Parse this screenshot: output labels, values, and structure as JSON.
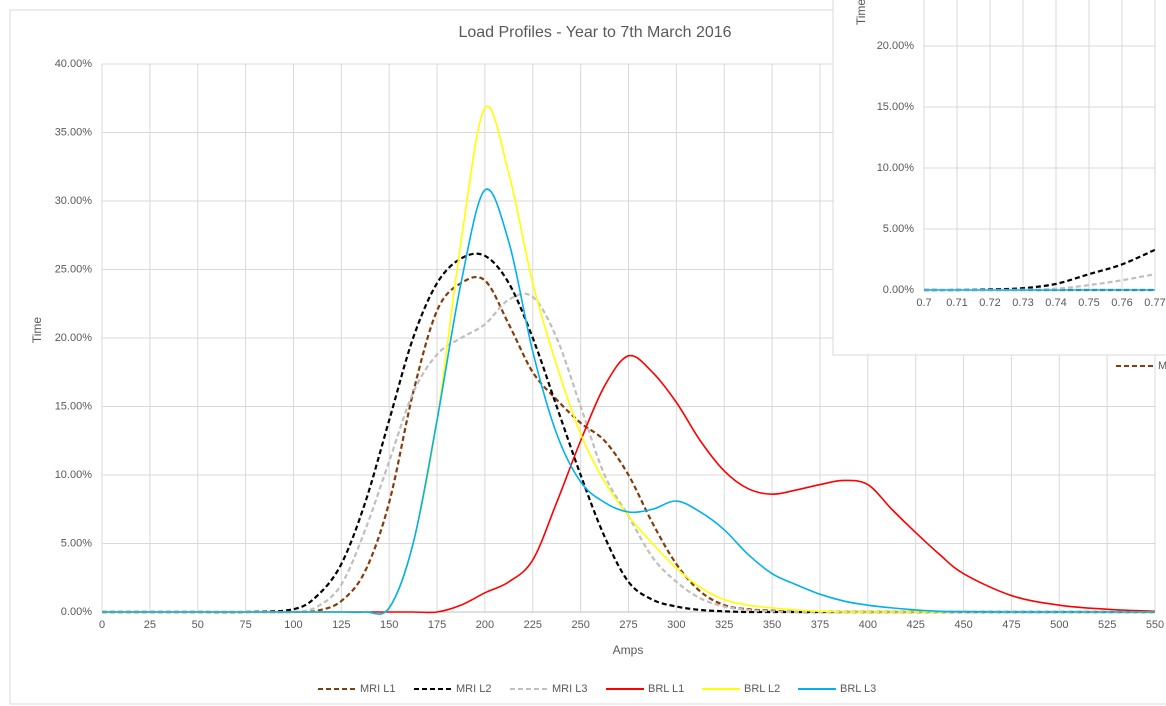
{
  "chart_data": [
    {
      "type": "line",
      "title": "Load Profiles - Year to 7th March 2016",
      "x_label": "Amps",
      "y_label": "Time",
      "grid": true,
      "legend": "bottom",
      "x": [
        0,
        25,
        50,
        75,
        100,
        112.5,
        125,
        137.5,
        150,
        162.5,
        175,
        187.5,
        200,
        212.5,
        225,
        237.5,
        250,
        262.5,
        275,
        287.5,
        300,
        312.5,
        325,
        337.5,
        350,
        362.5,
        375,
        387.5,
        400,
        412.5,
        425,
        437.5,
        450,
        475,
        500,
        525,
        550
      ],
      "xlim": [
        0,
        550
      ],
      "xticks": [
        0,
        25,
        50,
        75,
        100,
        125,
        150,
        175,
        200,
        225,
        250,
        275,
        300,
        325,
        350,
        375,
        400,
        425,
        450,
        475,
        500,
        525,
        550
      ],
      "ylim": [
        0,
        40
      ],
      "yticks": [
        {
          "value": 0,
          "label": "0.00%"
        },
        {
          "value": 5,
          "label": "5.00%"
        },
        {
          "value": 10,
          "label": "10.00%"
        },
        {
          "value": 15,
          "label": "15.00%"
        },
        {
          "value": 20,
          "label": "20.00%"
        },
        {
          "value": 25,
          "label": "25.00%"
        },
        {
          "value": 30,
          "label": "30.00%"
        },
        {
          "value": 35,
          "label": "35.00%"
        },
        {
          "value": 40,
          "label": "40.00%"
        }
      ],
      "series": [
        {
          "name": "MRI L1",
          "color": "#843c0c",
          "line_style": "dashed",
          "values": [
            0,
            0,
            0,
            0,
            0,
            0.1,
            0.8,
            3,
            8,
            16,
            22,
            24,
            24.2,
            21,
            17.5,
            15.5,
            13.8,
            12.5,
            10,
            6.5,
            3.5,
            1.5,
            0.5,
            0.2,
            0.1,
            0,
            0,
            0,
            0,
            0,
            0,
            0,
            0,
            0,
            0,
            0,
            0
          ]
        },
        {
          "name": "MRI L2",
          "color": "#000000",
          "line_style": "dashed",
          "values": [
            0,
            0,
            0,
            0,
            0.2,
            1.2,
            3.5,
            8,
            14,
            20,
            24,
            25.8,
            26,
            24,
            20,
            15,
            10,
            5.5,
            2.2,
            0.9,
            0.4,
            0.15,
            0.05,
            0,
            0,
            0,
            0,
            0,
            0,
            0,
            0,
            0,
            0,
            0,
            0,
            0,
            0
          ]
        },
        {
          "name": "MRI L3",
          "color": "#bfbfbf",
          "line_style": "dashed",
          "values": [
            0,
            0,
            0,
            0,
            0,
            0.4,
            2,
            6,
            11,
            16,
            18.8,
            20,
            21,
            22.8,
            23,
            20,
            15,
            10,
            7,
            4,
            2.2,
            1,
            0.4,
            0.15,
            0.05,
            0,
            0,
            0,
            0,
            0,
            0,
            0,
            0,
            0,
            0,
            0,
            0
          ]
        },
        {
          "name": "BRL L1",
          "color": "#ff0000",
          "line_style": "solid",
          "values": [
            0,
            0,
            0,
            0,
            0,
            0,
            0,
            0,
            0,
            0,
            0,
            0.5,
            1.4,
            2.2,
            3.8,
            8,
            12.5,
            16.5,
            18.7,
            17.5,
            15.3,
            12.5,
            10.3,
            9,
            8.6,
            8.9,
            9.3,
            9.6,
            9.3,
            7.5,
            5.8,
            4.2,
            2.8,
            1.2,
            0.5,
            0.2,
            0.05
          ]
        },
        {
          "name": "BRL L2",
          "color": "#ffff00",
          "line_style": "solid",
          "values": [
            0,
            0,
            0,
            0,
            0,
            0,
            0,
            0,
            0.3,
            5,
            14,
            27,
            36.8,
            32,
            24,
            18,
            13,
            9.5,
            7,
            5,
            3.2,
            1.8,
            0.9,
            0.5,
            0.3,
            0.15,
            0.05,
            0,
            0,
            0,
            0,
            0,
            0,
            0,
            0,
            0,
            0
          ]
        },
        {
          "name": "BRL L3",
          "color": "#00b0f0",
          "line_style": "solid",
          "values": [
            0,
            0,
            0,
            0,
            0,
            0,
            0,
            0,
            0.3,
            5,
            14,
            24,
            30.8,
            27,
            19,
            13,
            9.5,
            8,
            7.3,
            7.5,
            8.1,
            7.3,
            6,
            4.2,
            2.8,
            2,
            1.3,
            0.8,
            0.5,
            0.3,
            0.15,
            0.05,
            0.02,
            0,
            0,
            0,
            0
          ]
        }
      ]
    },
    {
      "type": "line",
      "y_label": "Time",
      "grid": true,
      "legend": "bottom",
      "x": [
        0.7,
        0.71,
        0.72,
        0.73,
        0.74,
        0.75,
        0.76,
        0.77
      ],
      "xlim": [
        0.7,
        0.77
      ],
      "xticks": [
        0.7,
        0.71,
        0.72,
        0.73,
        0.74,
        0.75,
        0.76,
        0.77
      ],
      "ylim": [
        0,
        25
      ],
      "yticks": [
        {
          "value": 0,
          "label": "0.00%"
        },
        {
          "value": 5,
          "label": "5.00%"
        },
        {
          "value": 10,
          "label": "10.00%"
        },
        {
          "value": 15,
          "label": "15.00%"
        },
        {
          "value": 20,
          "label": "20.00%"
        }
      ],
      "series": [
        {
          "name": "MRI L1",
          "color": "#843c0c",
          "line_style": "dashed",
          "values": [
            0,
            0,
            0,
            0,
            0,
            0,
            0,
            0
          ]
        },
        {
          "name": "MRI L2",
          "color": "#000000",
          "line_style": "dashed",
          "values": [
            0,
            0,
            0.05,
            0.15,
            0.5,
            1.3,
            2.1,
            3.3
          ]
        },
        {
          "name": "MRI L3",
          "color": "#bfbfbf",
          "line_style": "dashed",
          "values": [
            0,
            0,
            0,
            0.02,
            0.1,
            0.4,
            0.8,
            1.3
          ]
        },
        {
          "name": "BRL L3",
          "color": "#00b0f0",
          "line_style": "solid",
          "values": [
            0,
            0,
            0,
            0,
            0,
            0,
            0,
            0
          ]
        }
      ]
    }
  ]
}
